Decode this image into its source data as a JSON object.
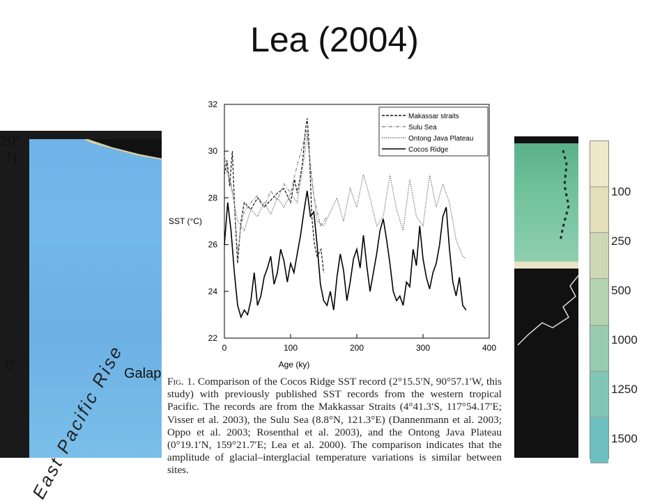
{
  "slide": {
    "title": "Lea (2004)"
  },
  "left_map": {
    "labels": {
      "lat_top": "20°",
      "lat_top_hem": "N",
      "lat_equator": "0°",
      "place": "Galap",
      "ridge": "East Pacific Rise"
    },
    "colors": {
      "ocean": "#6fb4e8",
      "land": "#111111",
      "coast": "#e8e3c4"
    }
  },
  "right_map": {
    "colors": {
      "shelf": "#6fc29a",
      "land": "#111111"
    }
  },
  "colorbar": {
    "labels": [
      "100",
      "250",
      "500",
      "1000",
      "1250",
      "1500"
    ],
    "colors": [
      "#efe9c9",
      "#e2dfb9",
      "#cfd8b4",
      "#b3d4ae",
      "#97ccb0",
      "#80c6b6",
      "#6ec0c0"
    ]
  },
  "chart_data": {
    "type": "line",
    "title": "",
    "xlabel": "Age (ky)",
    "ylabel": "SST (°C)",
    "xlim": [
      0,
      400
    ],
    "ylim": [
      22,
      32
    ],
    "xticks": [
      0,
      100,
      200,
      300,
      400
    ],
    "yticks": [
      22,
      24,
      26,
      28,
      30,
      32
    ],
    "legend_position": "top-right",
    "series": [
      {
        "name": "Makassar straits",
        "style": "dashed",
        "color": "#111111",
        "x": [
          0,
          4,
          8,
          12,
          16,
          20,
          25,
          30,
          40,
          50,
          60,
          70,
          80,
          90,
          100,
          106,
          110,
          114,
          118,
          122,
          125,
          128,
          132,
          136,
          140,
          146,
          150
        ],
        "y": [
          29.0,
          29.6,
          28.5,
          30.0,
          27.2,
          25.2,
          27.0,
          27.8,
          27.5,
          28.0,
          27.6,
          27.9,
          28.2,
          28.4,
          27.8,
          28.8,
          28.2,
          28.8,
          29.5,
          30.8,
          31.4,
          30.2,
          27.2,
          26.0,
          25.5,
          25.8,
          24.8
        ]
      },
      {
        "name": "Sulu Sea",
        "style": "dashdot",
        "color": "#888888",
        "x": [
          0,
          5,
          10,
          15,
          20,
          25,
          30,
          40,
          50,
          60,
          70,
          80,
          90,
          100,
          110,
          118,
          124,
          128,
          135,
          145,
          155
        ],
        "y": [
          29.5,
          29.0,
          28.6,
          27.8,
          25.6,
          26.8,
          27.4,
          27.8,
          28.1,
          27.6,
          28.3,
          27.9,
          28.6,
          28.2,
          29.4,
          30.2,
          30.9,
          30.0,
          28.1,
          26.8,
          27.2
        ]
      },
      {
        "name": "Ontong Java Plateau",
        "style": "dotted",
        "color": "#777777",
        "x": [
          0,
          10,
          20,
          30,
          40,
          50,
          60,
          70,
          80,
          90,
          100,
          110,
          120,
          125,
          130,
          140,
          150,
          160,
          170,
          180,
          190,
          200,
          210,
          220,
          230,
          240,
          250,
          260,
          270,
          280,
          290,
          300,
          310,
          320,
          330,
          340,
          350,
          360,
          365
        ],
        "y": [
          29.8,
          28.5,
          27.0,
          26.6,
          27.5,
          27.2,
          27.8,
          27.3,
          28.0,
          27.6,
          28.2,
          27.8,
          29.6,
          30.8,
          29.2,
          27.0,
          26.8,
          27.4,
          28.0,
          27.0,
          28.4,
          27.6,
          29.0,
          28.0,
          26.8,
          27.2,
          29.0,
          27.5,
          26.6,
          28.8,
          27.2,
          26.8,
          29.0,
          27.6,
          28.6,
          27.8,
          26.2,
          25.5,
          25.4
        ]
      },
      {
        "name": "Cocos Ridge",
        "style": "solid",
        "color": "#000000",
        "x": [
          0,
          5,
          10,
          15,
          20,
          25,
          30,
          35,
          40,
          45,
          50,
          55,
          60,
          65,
          70,
          75,
          80,
          85,
          90,
          95,
          100,
          105,
          110,
          115,
          120,
          125,
          130,
          135,
          140,
          145,
          150,
          155,
          160,
          165,
          170,
          175,
          180,
          185,
          190,
          195,
          200,
          205,
          210,
          215,
          220,
          225,
          230,
          235,
          240,
          245,
          250,
          255,
          260,
          265,
          270,
          275,
          280,
          285,
          290,
          295,
          300,
          305,
          310,
          315,
          320,
          325,
          330,
          335,
          340,
          345,
          350,
          355,
          360,
          365
        ],
        "y": [
          26.0,
          27.8,
          26.6,
          24.8,
          23.4,
          22.9,
          23.2,
          23.0,
          23.6,
          24.8,
          23.4,
          23.8,
          24.6,
          25.0,
          25.5,
          24.3,
          24.8,
          25.8,
          25.3,
          24.4,
          25.2,
          24.8,
          25.6,
          26.4,
          27.4,
          28.3,
          27.2,
          27.4,
          26.0,
          24.3,
          23.6,
          23.4,
          24.0,
          23.2,
          24.6,
          25.6,
          24.9,
          23.6,
          24.4,
          25.4,
          25.8,
          25.0,
          26.4,
          25.1,
          24.0,
          24.8,
          25.6,
          26.6,
          27.1,
          26.2,
          25.2,
          24.0,
          23.6,
          23.8,
          23.4,
          24.4,
          24.2,
          25.8,
          25.1,
          26.8,
          25.4,
          24.6,
          24.1,
          24.8,
          25.2,
          26.0,
          27.2,
          27.6,
          25.8,
          24.4,
          23.8,
          24.6,
          23.4,
          23.2
        ]
      }
    ]
  },
  "caption": {
    "fig_label": "Fig. 1.",
    "text": " Comparison of the Cocos Ridge SST record (2°15.5′N, 90°57.1′W, this study) with previously published SST records from the western tropical Pacific. The records are from the Makkassar Straits (4°41.3′S, 117°54.17′E; Visser et al. 2003), the Sulu Sea (8.8°N, 121.3°E) (Dannenmann et al. 2003; Oppo et al. 2003; Rosenthal et al. 2003), and the Ontong Java Plateau (0°19.1′N, 159°21.7′E; Lea et al. 2000). The comparison indicates that the amplitude of glacial–interglacial temperature variations is similar between sites."
  }
}
